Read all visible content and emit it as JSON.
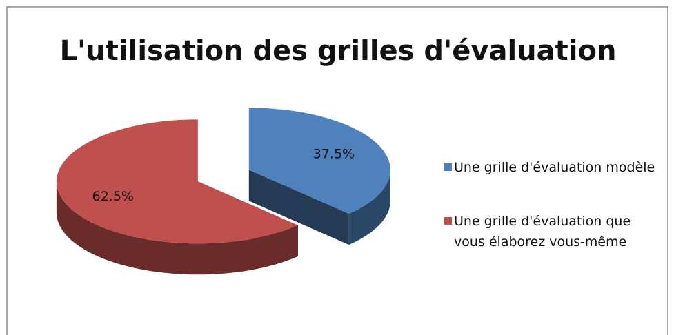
{
  "chart_data": {
    "type": "pie",
    "title": "L'utilisation des grilles d'évaluation",
    "categories": [
      "Une grille d'évaluation modèle",
      "Une grille d'évaluation que vous élaborez vous-même"
    ],
    "values": [
      37.5,
      62.5
    ],
    "value_labels": [
      "37.5%",
      "62.5%"
    ],
    "colors": [
      "#4f81bd",
      "#c0504d"
    ],
    "legend": "right"
  }
}
